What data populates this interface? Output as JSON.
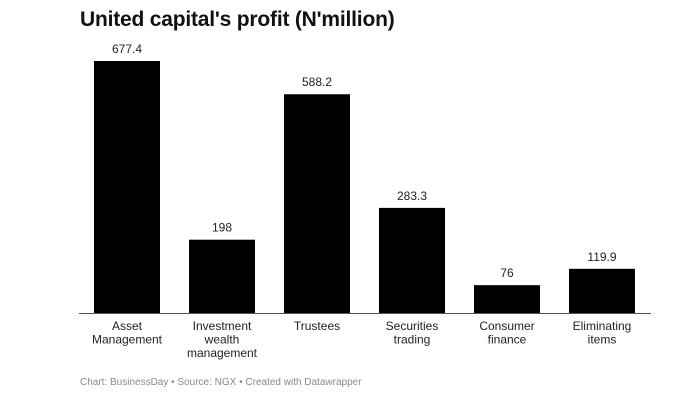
{
  "chart_data": {
    "type": "bar",
    "title": "United capital's profit (N'million)",
    "categories": [
      [
        "Asset",
        "Management"
      ],
      [
        "Investment",
        "wealth",
        "management"
      ],
      [
        "Trustees"
      ],
      [
        "Securities",
        "trading"
      ],
      [
        "Consumer",
        "finance"
      ],
      [
        "Eliminating",
        "items"
      ]
    ],
    "values": [
      677.4,
      198,
      588.2,
      283.3,
      76,
      119.9
    ],
    "value_labels": [
      "677.4",
      "198",
      "588.2",
      "283.3",
      "76",
      "119.9"
    ],
    "bar_color": "#000000",
    "ylim": [
      0,
      677.4
    ],
    "grid": false,
    "xlabel": "",
    "ylabel": ""
  },
  "footer": "Chart: BusinessDay • Source: NGX • Created with Datawrapper"
}
